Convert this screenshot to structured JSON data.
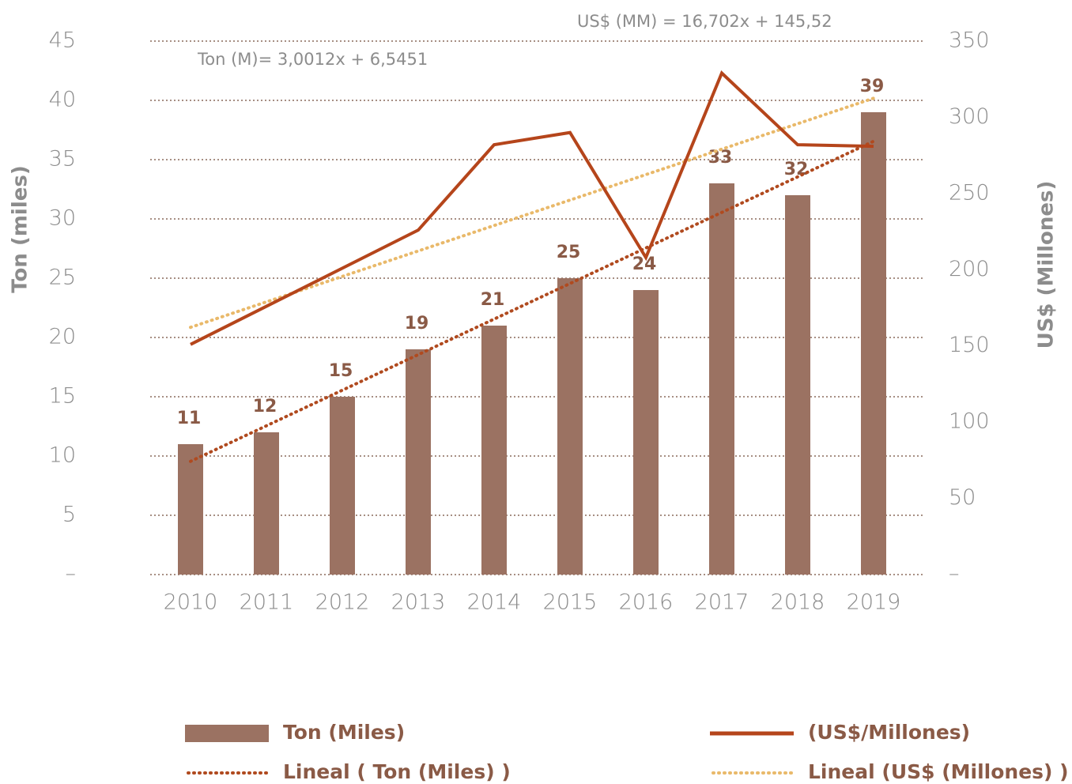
{
  "chart_data": {
    "type": "bar-line",
    "categories": [
      "2010",
      "2011",
      "2012",
      "2013",
      "2014",
      "2015",
      "2016",
      "2017",
      "2018",
      "2019"
    ],
    "series": [
      {
        "name": "Ton (Miles)",
        "type": "bar",
        "color": "#9b7262",
        "values": [
          11,
          12,
          15,
          19,
          21,
          25,
          24,
          33,
          32,
          39
        ]
      },
      {
        "name": "(US$/Millones)",
        "type": "line",
        "axis": "y2",
        "color": "#b5451b",
        "values": [
          151,
          176,
          201,
          226,
          282,
          290,
          208,
          329,
          282,
          281
        ]
      },
      {
        "name": "Lineal ( Ton (Miles) )",
        "type": "trend",
        "color": "#b04a1f",
        "values": [
          9.55,
          12.55,
          15.55,
          18.55,
          21.55,
          24.55,
          27.55,
          30.55,
          33.55,
          36.55
        ]
      },
      {
        "name": "Lineal (US$ (Millones) )",
        "type": "trend",
        "axis": "y2",
        "color": "#e9b96a",
        "values": [
          162.2,
          178.9,
          195.6,
          212.3,
          229.0,
          245.7,
          262.4,
          279.1,
          295.8,
          312.5
        ]
      }
    ],
    "ylabel": "Ton (miles)",
    "y2label": "US$ (Millones)",
    "ylim": [
      0,
      45
    ],
    "yticks": [
      {
        "value": 0,
        "label": "–"
      },
      5,
      10,
      15,
      20,
      25,
      30,
      35,
      40,
      45
    ],
    "y2lim": [
      0,
      350
    ],
    "y2ticks": [
      {
        "value": 0,
        "label": "–"
      },
      50,
      100,
      150,
      200,
      250,
      300,
      350
    ],
    "annotations": [
      "US$ (MM) = 16,702x + 145,52",
      "Ton (M)= 3,0012x + 6,5451"
    ],
    "grid": true
  }
}
